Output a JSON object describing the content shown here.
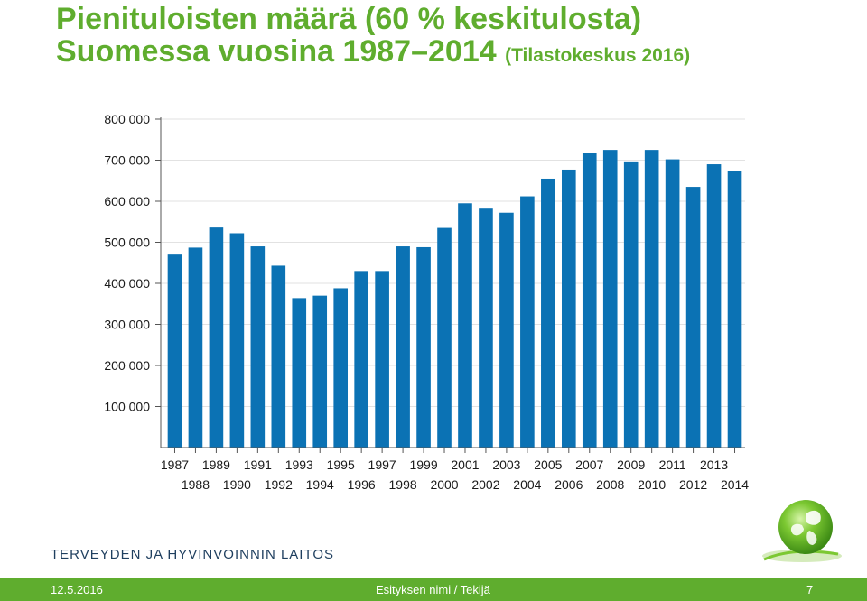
{
  "header": {
    "title_line1": "Pienituloisten määrä (60 % keskitulosta)",
    "title_line2": "Suomessa vuosina 1987–2014",
    "title_source": "(Tilastokeskus 2016)"
  },
  "chart_data": {
    "type": "bar",
    "title": "Pienituloisten määrä (60 % keskitulosta) Suomessa vuosina 1987–2014 (Tilastokeskus 2016)",
    "xlabel": "",
    "ylabel": "",
    "ylim": [
      0,
      800000
    ],
    "grid": true,
    "bar_color": "#0b72b4",
    "yticks": [
      100000,
      200000,
      300000,
      400000,
      500000,
      600000,
      700000,
      800000
    ],
    "ytick_labels": [
      "100 000",
      "200 000",
      "300 000",
      "400 000",
      "500 000",
      "600 000",
      "700 000",
      "800 000"
    ],
    "categories": [
      "1987",
      "1988",
      "1989",
      "1990",
      "1991",
      "1992",
      "1993",
      "1994",
      "1995",
      "1996",
      "1997",
      "1998",
      "1999",
      "2000",
      "2001",
      "2002",
      "2003",
      "2004",
      "2005",
      "2006",
      "2007",
      "2008",
      "2009",
      "2010",
      "2011",
      "2012",
      "2013",
      "2014"
    ],
    "values": [
      470000,
      487000,
      536000,
      522000,
      490000,
      443000,
      364000,
      370000,
      388000,
      430000,
      430000,
      490000,
      488000,
      535000,
      595000,
      582000,
      572000,
      612000,
      655000,
      677000,
      718000,
      725000,
      697000,
      725000,
      702000,
      635000,
      690000,
      674000
    ]
  },
  "branding": {
    "organization": "TERVEYDEN JA HYVINVOINNIN LAITOS",
    "logo_icon": "green-leaf-globe-icon"
  },
  "footer": {
    "date": "12.5.2016",
    "center_text": "Esityksen nimi / Tekijä",
    "page_number": "7",
    "color": "#5fad2e"
  }
}
